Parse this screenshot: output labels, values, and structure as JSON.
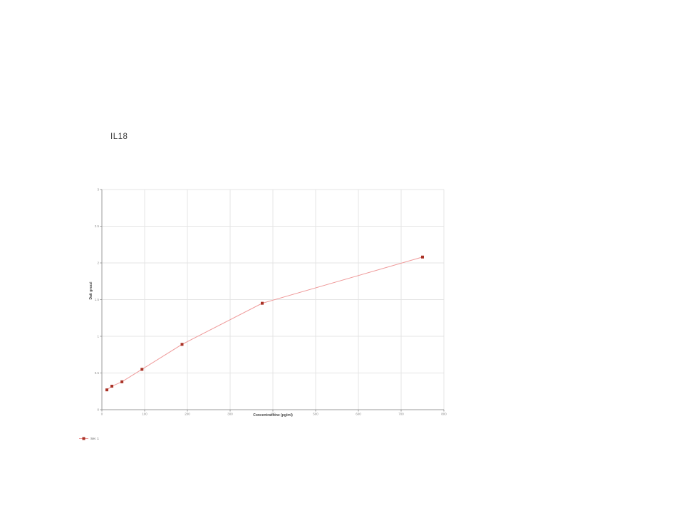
{
  "page": {
    "title": "IL18"
  },
  "chart_data": {
    "type": "line",
    "title": "IL18",
    "xlabel": "Concentrazione (pg/ml)",
    "ylabel": "Dati grezzi",
    "xlim": [
      0,
      800
    ],
    "ylim": [
      0,
      3
    ],
    "xticks": [
      0,
      100,
      200,
      300,
      400,
      500,
      600,
      700,
      800
    ],
    "yticks": [
      0,
      0.5,
      1,
      1.5,
      2,
      2.5,
      3
    ],
    "ytick_labels": [
      "0",
      "0.5",
      "1",
      "1.5",
      "2",
      "2.5",
      "3"
    ],
    "grid": true,
    "legend_position": "bottom-left",
    "series": [
      {
        "name": "Ser. 1",
        "marker": "square",
        "line_color": "#ef9a9a",
        "marker_color": "#a93226",
        "x": [
          11.7,
          23.4,
          46.9,
          93.8,
          187.5,
          375,
          750
        ],
        "y": [
          0.27,
          0.32,
          0.38,
          0.55,
          0.89,
          1.45,
          2.08
        ]
      }
    ],
    "colors": {
      "grid": "#e4e4e4",
      "axis": "#9b9b9b",
      "tick_label": "#8a8a8a",
      "axis_title": "#4a4a4a",
      "title": "#3d3d3d"
    }
  }
}
